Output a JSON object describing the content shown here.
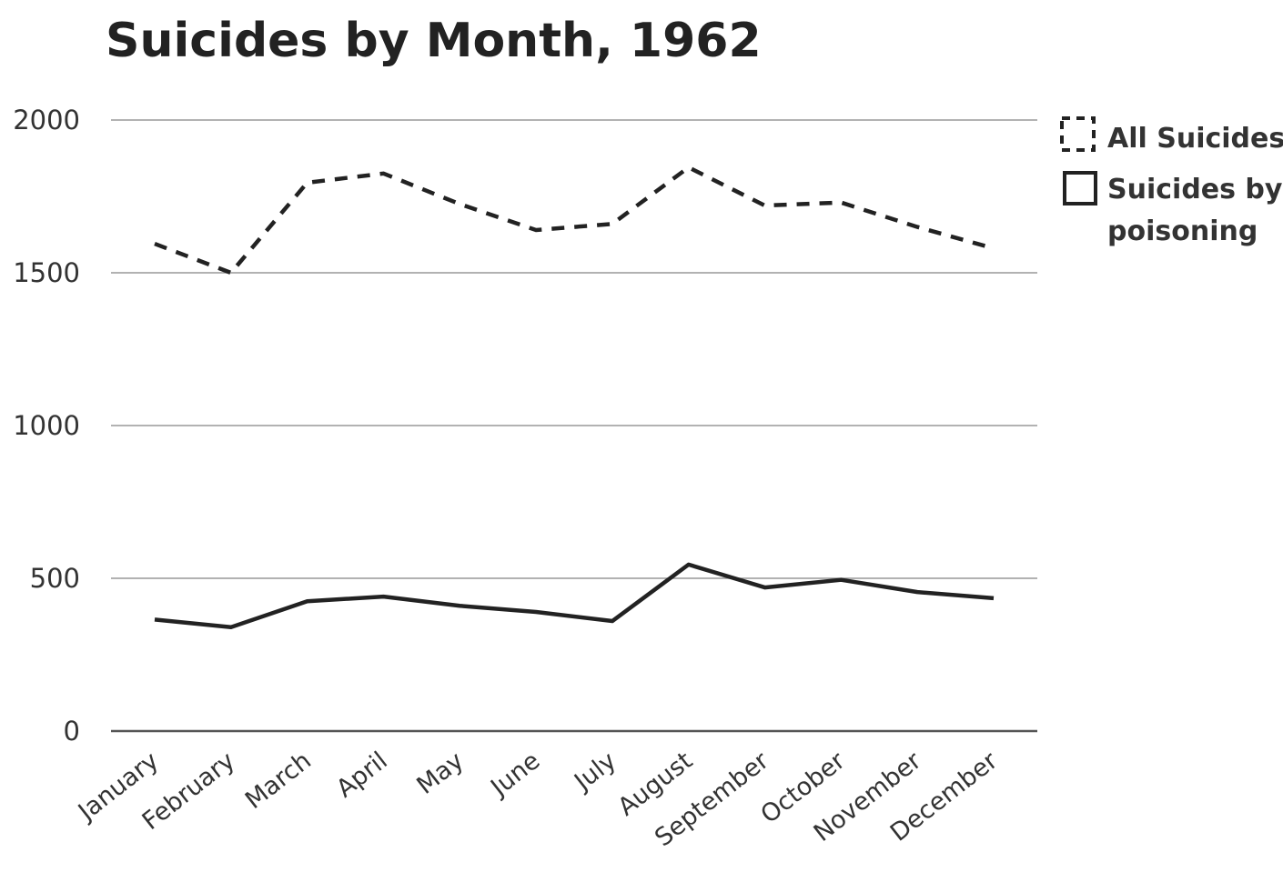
{
  "chart_data": {
    "type": "line",
    "title": "Suicides by Month, 1962",
    "categories": [
      "January",
      "February",
      "March",
      "April",
      "May",
      "June",
      "July",
      "August",
      "September",
      "October",
      "November",
      "December"
    ],
    "series": [
      {
        "name": "All Suicides",
        "line_style": "dashed",
        "values": [
          1595,
          1500,
          1795,
          1825,
          1725,
          1640,
          1660,
          1845,
          1720,
          1730,
          1650,
          1580
        ]
      },
      {
        "name": "Suicides by poisoning",
        "line_style": "solid",
        "values": [
          365,
          340,
          425,
          440,
          410,
          390,
          360,
          545,
          470,
          495,
          455,
          435
        ]
      }
    ],
    "xlabel": "",
    "ylabel": "",
    "ylim": [
      0,
      2000
    ],
    "yticks": [
      0,
      500,
      1000,
      1500,
      2000
    ],
    "grid": true,
    "legend_position": "right",
    "colors": {
      "line": "#222222",
      "grid": "#999999",
      "text": "#333333"
    }
  }
}
